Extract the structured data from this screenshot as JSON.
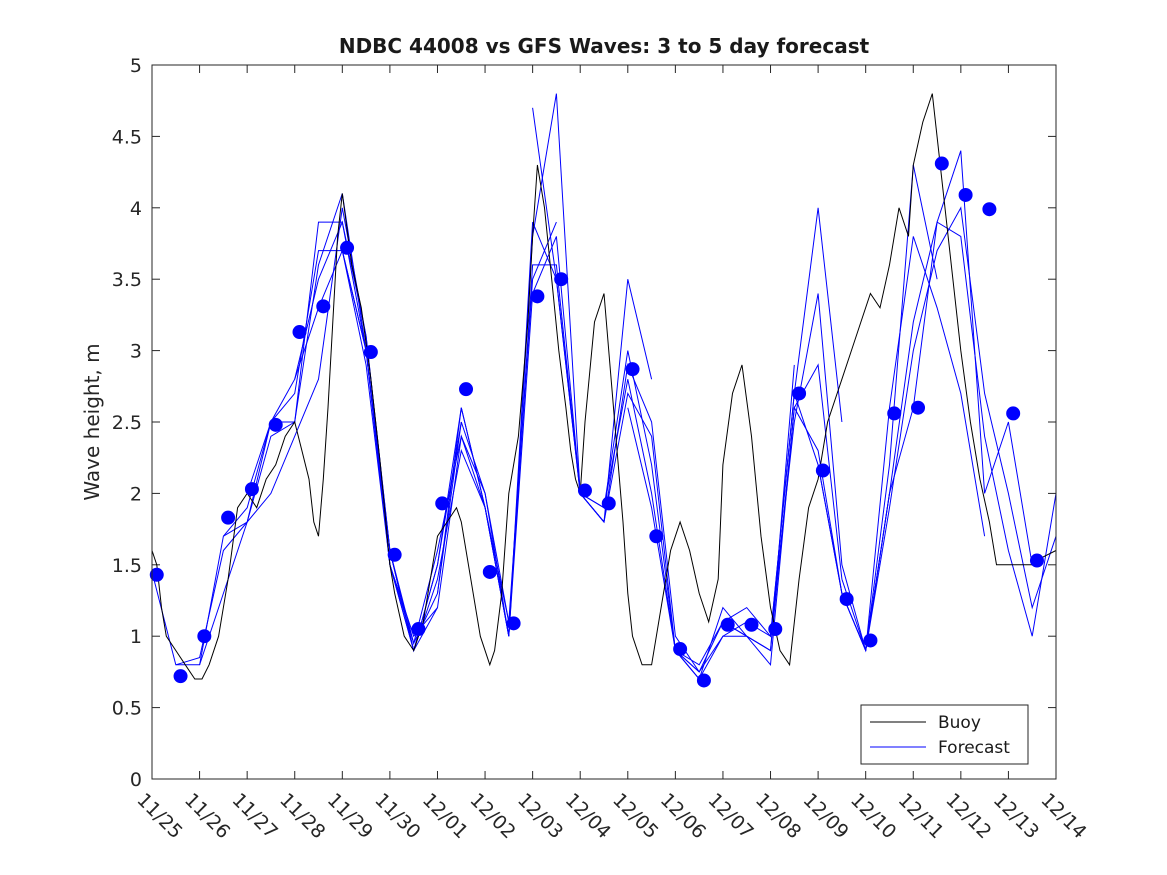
{
  "chart_data": {
    "type": "line",
    "title": "NDBC 44008 vs GFS Waves: 3 to 5 day forecast",
    "xlabel": "",
    "ylabel": "Wave height, m",
    "xlim": [
      0,
      19
    ],
    "ylim": [
      0,
      5
    ],
    "yticks": [
      "0",
      "0.5",
      "1",
      "1.5",
      "2",
      "2.5",
      "3",
      "3.5",
      "4",
      "4.5",
      "5"
    ],
    "xtick_labels": [
      "11/25",
      "11/26",
      "11/27",
      "11/28",
      "11/29",
      "11/30",
      "12/01",
      "12/02",
      "12/03",
      "12/04",
      "12/05",
      "12/06",
      "12/07",
      "12/08",
      "12/09",
      "12/10",
      "12/11",
      "12/12",
      "12/13",
      "12/14"
    ],
    "legend": {
      "position": "bottom-right",
      "entries": [
        "Buoy",
        "Forecast"
      ]
    },
    "colors": {
      "buoy": "#000000",
      "forecast": "#0000ff",
      "axis": "#262626"
    },
    "buoy": {
      "name": "Buoy",
      "x": [
        0,
        0.1,
        0.2,
        0.3,
        0.5,
        0.7,
        0.9,
        1.05,
        1.2,
        1.4,
        1.6,
        1.8,
        2.0,
        2.2,
        2.4,
        2.6,
        2.8,
        3.0,
        3.15,
        3.3,
        3.4,
        3.5,
        3.6,
        3.7,
        3.8,
        3.9,
        4.0,
        4.2,
        4.4,
        4.6,
        4.8,
        5.0,
        5.1,
        5.3,
        5.5,
        5.7,
        5.9,
        6.0,
        6.2,
        6.4,
        6.5,
        6.7,
        6.9,
        7.1,
        7.2,
        7.35,
        7.5,
        7.7,
        7.9,
        8.0,
        8.1,
        8.25,
        8.4,
        8.55,
        8.7,
        8.8,
        8.9,
        9.0,
        9.1,
        9.3,
        9.5,
        9.7,
        9.9,
        10.0,
        10.1,
        10.3,
        10.5,
        10.7,
        10.9,
        11.1,
        11.3,
        11.5,
        11.7,
        11.9,
        12.0,
        12.2,
        12.4,
        12.6,
        12.8,
        13.0,
        13.2,
        13.4,
        13.6,
        13.8,
        14.0,
        14.2,
        14.5,
        14.7,
        14.9,
        15.1,
        15.3,
        15.5,
        15.7,
        15.9,
        16.0,
        16.2,
        16.4,
        16.6,
        16.8,
        17.0,
        17.2,
        17.4,
        17.6,
        17.75,
        17.9,
        18.1,
        18.3,
        18.5,
        18.7,
        19.0
      ],
      "y": [
        1.6,
        1.5,
        1.2,
        1.0,
        0.9,
        0.8,
        0.7,
        0.7,
        0.8,
        1.0,
        1.4,
        1.9,
        2.0,
        1.9,
        2.1,
        2.2,
        2.4,
        2.5,
        2.3,
        2.1,
        1.8,
        1.7,
        2.1,
        2.6,
        3.2,
        3.8,
        4.1,
        3.6,
        3.3,
        2.8,
        2.2,
        1.5,
        1.3,
        1.0,
        0.9,
        1.1,
        1.5,
        1.7,
        1.8,
        1.9,
        1.8,
        1.4,
        1.0,
        0.8,
        0.9,
        1.3,
        2.0,
        2.4,
        3.2,
        3.8,
        4.3,
        4.0,
        3.5,
        3.0,
        2.6,
        2.3,
        2.1,
        2.0,
        2.5,
        3.2,
        3.4,
        2.6,
        1.8,
        1.3,
        1.0,
        0.8,
        0.8,
        1.2,
        1.6,
        1.8,
        1.6,
        1.3,
        1.1,
        1.4,
        2.2,
        2.7,
        2.9,
        2.4,
        1.7,
        1.2,
        0.9,
        0.8,
        1.4,
        1.9,
        2.1,
        2.5,
        2.8,
        3.0,
        3.2,
        3.4,
        3.3,
        3.6,
        4.0,
        3.8,
        4.3,
        4.6,
        4.8,
        4.2,
        3.6,
        3.0,
        2.5,
        2.1,
        1.8,
        1.5,
        1.5,
        1.5,
        1.5,
        1.5,
        1.55,
        1.6
      ]
    },
    "forecast_runs": [
      {
        "x": [
          0,
          0.5,
          1.0,
          1.5,
          2.0,
          2.5,
          3.0,
          3.5,
          4.0,
          4.5,
          5.0,
          5.5
        ],
        "y": [
          1.45,
          0.8,
          0.8,
          1.3,
          1.8,
          2.0,
          2.4,
          2.8,
          4.0,
          3.1,
          1.6,
          0.9
        ]
      },
      {
        "x": [
          0.5,
          1.0,
          1.5,
          2.0,
          2.5,
          3.0,
          3.5,
          4.0,
          4.5,
          5.0,
          5.5,
          6.0
        ],
        "y": [
          0.8,
          0.85,
          1.6,
          1.8,
          2.5,
          2.5,
          3.6,
          4.1,
          3.0,
          1.5,
          1.0,
          1.2
        ]
      },
      {
        "x": [
          1.0,
          1.5,
          2.0,
          2.5,
          3.0,
          3.5,
          4.0,
          4.5,
          5.0,
          5.5,
          6.0,
          6.5
        ],
        "y": [
          0.8,
          1.7,
          1.8,
          2.4,
          2.5,
          3.9,
          3.9,
          3.0,
          1.5,
          0.9,
          1.5,
          2.5
        ]
      },
      {
        "x": [
          1.5,
          2.0,
          2.5,
          3.0,
          3.5,
          4.0,
          4.5,
          5.0,
          5.5,
          6.0,
          6.5,
          7.0
        ],
        "y": [
          1.7,
          1.9,
          2.5,
          2.8,
          3.5,
          3.9,
          3.1,
          1.6,
          0.9,
          1.5,
          2.6,
          1.9
        ]
      },
      {
        "x": [
          2.0,
          2.5,
          3.0,
          3.5,
          4.0,
          4.5,
          5.0,
          5.5,
          6.0,
          6.5,
          7.0,
          7.5
        ],
        "y": [
          2.0,
          2.5,
          2.7,
          3.7,
          3.7,
          2.9,
          1.5,
          0.95,
          1.6,
          2.4,
          1.9,
          1.1
        ]
      },
      {
        "x": [
          3.0,
          3.5,
          4.0,
          4.5,
          5.0,
          5.5,
          6.0,
          6.5,
          7.0,
          7.5,
          8.0,
          8.5
        ],
        "y": [
          2.8,
          3.3,
          3.7,
          3.0,
          1.6,
          0.95,
          1.3,
          2.5,
          2.0,
          1.1,
          3.5,
          3.9
        ]
      },
      {
        "x": [
          4.0,
          4.5,
          5.0,
          5.5,
          6.0,
          6.5,
          7.0,
          7.5,
          8.0,
          8.5,
          9.0,
          9.5
        ],
        "y": [
          3.7,
          3.0,
          1.6,
          0.9,
          1.2,
          2.4,
          2.0,
          1.0,
          3.6,
          3.6,
          2.0,
          1.8
        ]
      },
      {
        "x": [
          5.0,
          5.5,
          6.0,
          6.5,
          7.0,
          7.5,
          8.0,
          8.5,
          9.0,
          9.5,
          10.0,
          10.5
        ],
        "y": [
          1.5,
          0.9,
          1.4,
          2.3,
          1.9,
          1.0,
          3.8,
          4.8,
          2.0,
          1.8,
          3.5,
          2.8
        ]
      },
      {
        "x": [
          6.0,
          6.5,
          7.0,
          7.5,
          8.0,
          8.5,
          9.0,
          9.5,
          10.0,
          10.5,
          11.0,
          11.5
        ],
        "y": [
          1.3,
          2.6,
          1.9,
          1.0,
          3.4,
          3.8,
          2.0,
          1.8,
          2.9,
          2.5,
          1.0,
          0.75
        ]
      },
      {
        "x": [
          7.0,
          7.5,
          8.0,
          8.5,
          9.0,
          9.5,
          10.0,
          10.5,
          11.0,
          11.5,
          12.0,
          12.5
        ],
        "y": [
          1.9,
          1.0,
          3.9,
          3.5,
          2.0,
          1.8,
          2.7,
          2.4,
          0.9,
          0.75,
          1.0,
          1.0
        ]
      },
      {
        "x": [
          8.0,
          8.5,
          9.0,
          9.5,
          10.0,
          10.5,
          11.0,
          11.5,
          12.0,
          12.5,
          13.0,
          13.5
        ],
        "y": [
          4.7,
          3.5,
          2.0,
          1.9,
          2.8,
          2.0,
          0.9,
          0.7,
          1.2,
          1.0,
          0.9,
          2.9
        ]
      },
      {
        "x": [
          9.0,
          9.5,
          10.0,
          10.5,
          11.0,
          11.5,
          12.0,
          12.5,
          13.0,
          13.5,
          14.0,
          14.5
        ],
        "y": [
          2.0,
          1.9,
          3.0,
          2.2,
          0.9,
          0.8,
          1.1,
          1.2,
          1.0,
          2.7,
          4.0,
          2.5
        ]
      },
      {
        "x": [
          10.0,
          10.5,
          11.0,
          11.5,
          12.0,
          12.5,
          13.0,
          13.5,
          14.0,
          14.5,
          15.0,
          15.5
        ],
        "y": [
          2.6,
          1.9,
          0.9,
          0.7,
          1.0,
          1.1,
          1.0,
          2.5,
          3.4,
          1.5,
          0.9,
          2.0
        ]
      },
      {
        "x": [
          11.0,
          11.5,
          12.0,
          12.5,
          13.0,
          13.5,
          14.0,
          14.5,
          15.0,
          15.5,
          16.0,
          16.5
        ],
        "y": [
          0.9,
          0.75,
          1.1,
          1.0,
          0.9,
          2.6,
          2.9,
          1.4,
          0.9,
          2.2,
          4.3,
          3.5
        ]
      },
      {
        "x": [
          12.0,
          12.5,
          13.0,
          13.5,
          14.0,
          14.5,
          15.0,
          15.5,
          16.0,
          16.5,
          17.0,
          17.5
        ],
        "y": [
          1.1,
          1.0,
          0.8,
          2.6,
          2.3,
          1.3,
          0.9,
          2.6,
          3.8,
          3.3,
          2.7,
          1.7
        ]
      },
      {
        "x": [
          13.0,
          13.5,
          14.0,
          14.5,
          15.0,
          15.5,
          16.0,
          16.5,
          17.0,
          17.5,
          18.0,
          18.5
        ],
        "y": [
          1.0,
          2.7,
          2.2,
          1.3,
          0.9,
          2.0,
          2.6,
          3.9,
          4.4,
          2.0,
          2.5,
          1.5
        ]
      },
      {
        "x": [
          14.0,
          14.5,
          15.0,
          15.5,
          16.0,
          16.5,
          17.0,
          17.5,
          18.0,
          18.5,
          19.0
        ],
        "y": [
          2.2,
          1.3,
          0.9,
          1.9,
          3.0,
          3.7,
          4.0,
          2.7,
          2.0,
          1.2,
          1.7
        ]
      },
      {
        "x": [
          15.0,
          15.5,
          16.0,
          16.5,
          17.0,
          17.5,
          18.0,
          18.5,
          19.0
        ],
        "y": [
          0.9,
          2.0,
          3.2,
          3.9,
          3.8,
          2.4,
          1.6,
          1.0,
          2.0
        ]
      }
    ],
    "forecast_markers": {
      "x": [
        0.1,
        0.6,
        1.1,
        1.6,
        2.1,
        2.6,
        3.1,
        3.6,
        4.1,
        4.6,
        5.1,
        5.6,
        6.1,
        6.6,
        7.1,
        7.6,
        8.1,
        8.6,
        9.1,
        9.6,
        10.1,
        10.6,
        11.1,
        11.6,
        12.1,
        12.6,
        13.1,
        13.6,
        14.1,
        14.6,
        15.1,
        15.6,
        16.1,
        16.6,
        17.1,
        17.6,
        18.1,
        18.6
      ],
      "y": [
        1.43,
        0.72,
        1.0,
        1.83,
        2.03,
        2.48,
        3.13,
        3.31,
        3.72,
        2.99,
        1.57,
        1.05,
        1.93,
        2.73,
        1.45,
        1.09,
        3.38,
        3.5,
        2.02,
        1.93,
        2.87,
        1.7,
        0.91,
        0.69,
        1.08,
        1.08,
        1.05,
        2.7,
        2.16,
        1.26,
        0.97,
        2.56,
        2.6,
        4.31,
        4.09,
        3.99,
        2.56,
        1.53
      ]
    }
  }
}
